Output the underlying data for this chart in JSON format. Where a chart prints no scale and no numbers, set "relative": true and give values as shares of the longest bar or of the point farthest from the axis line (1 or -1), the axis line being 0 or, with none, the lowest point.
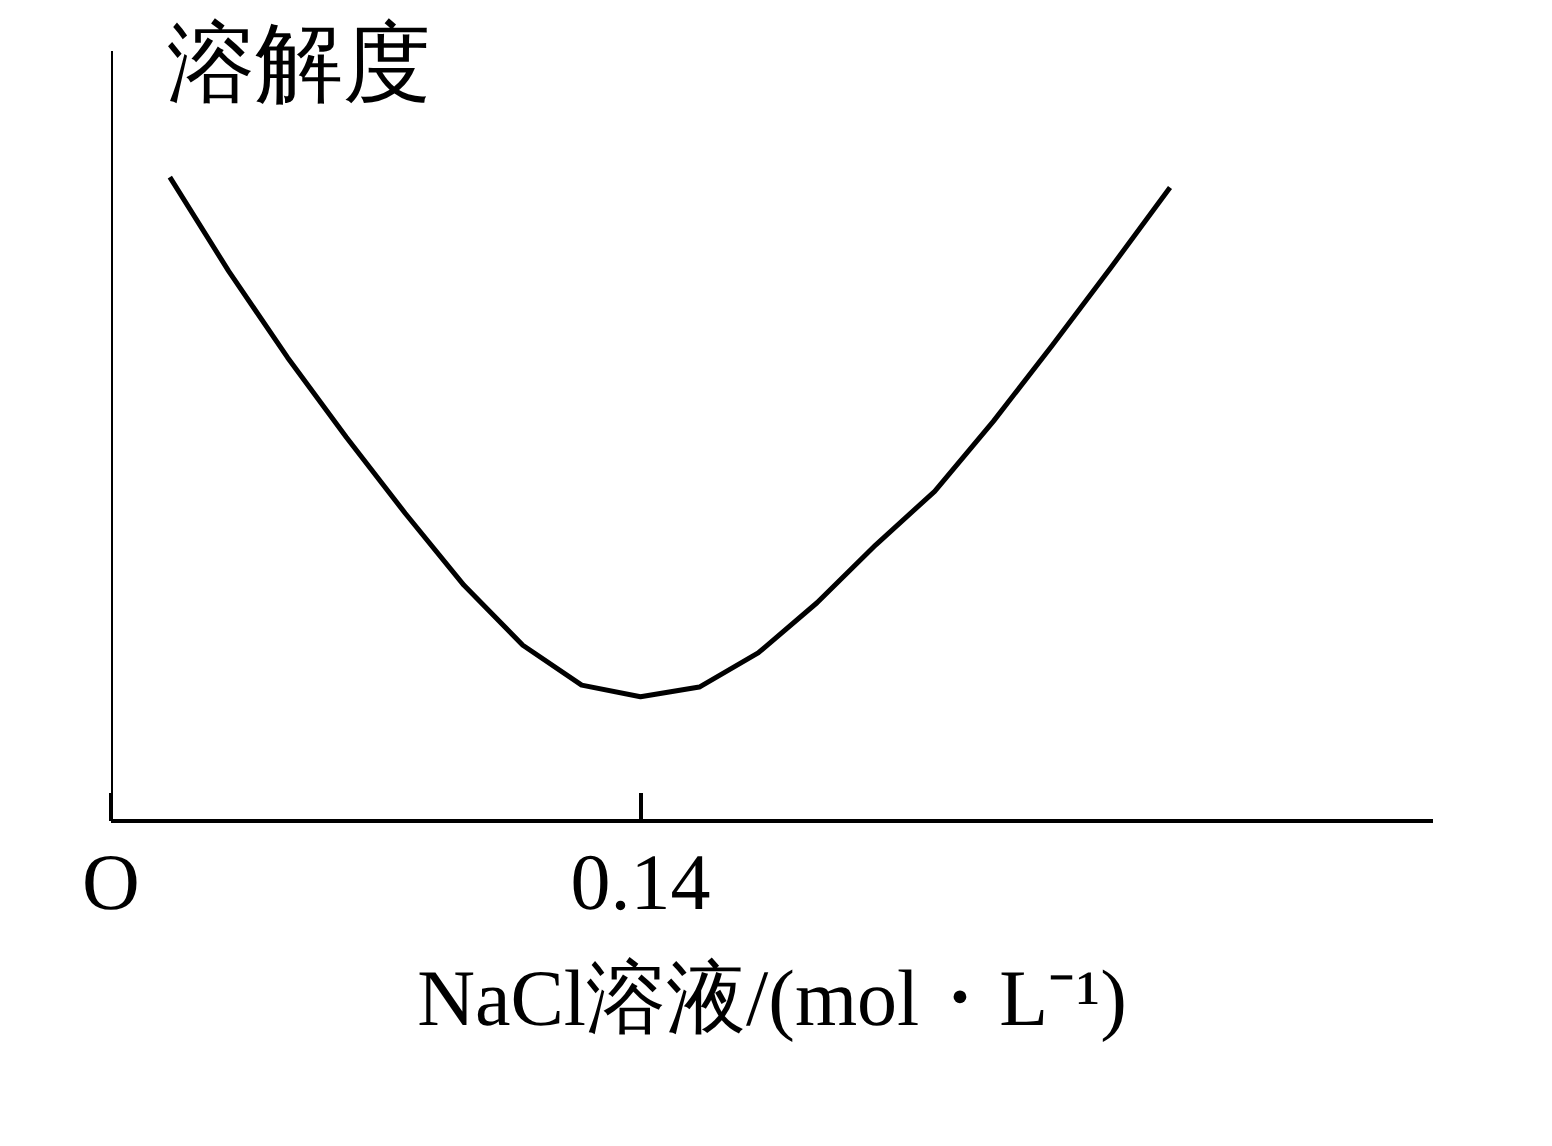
{
  "chart_data": {
    "type": "line",
    "relative": true,
    "ylabel": "溶解度",
    "xlabel": "NaCl溶液/(mol・L⁻¹)",
    "tick_labels": "x",
    "categories": [
      "O",
      null,
      null,
      null,
      null,
      null,
      null,
      null,
      null,
      "0.14",
      null,
      null,
      null,
      null,
      null,
      null,
      null,
      null,
      null
    ],
    "series": [
      {
        "color": "#000000",
        "values": [
          null,
          1,
          0.854,
          0.72,
          0.596,
          0.478,
          0.366,
          0.273,
          0.211,
          0.193,
          0.208,
          0.261,
          0.339,
          0.429,
          0.512,
          0.621,
          0.739,
          0.86,
          0.984
        ]
      }
    ]
  }
}
